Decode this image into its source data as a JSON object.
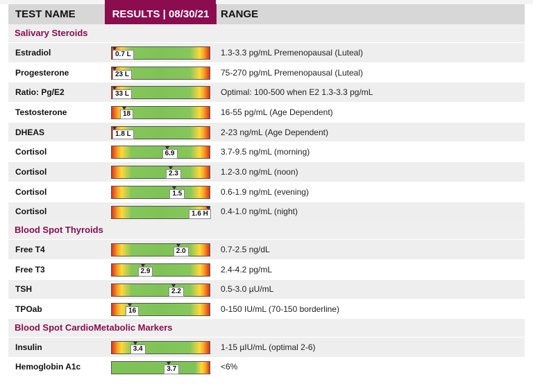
{
  "header": {
    "test_name": "TEST NAME",
    "results": "RESULTS | 08/30/21",
    "range": "RANGE"
  },
  "sections": [
    {
      "title": "Salivary Steroids",
      "rows": [
        {
          "name": "Estradiol",
          "value": "0.7 L",
          "position": 0.0,
          "range": "1.3-3.3 pg/mL Premenopausal (Luteal)"
        },
        {
          "name": "Progesterone",
          "value": "23 L",
          "position": 0.0,
          "range": "75-270 pg/mL Premenopausal (Luteal)"
        },
        {
          "name": "Ratio: Pg/E2",
          "value": "33 L",
          "position": 0.0,
          "range": "Optimal: 100-500 when E2 1.3-3.3 pg/mL"
        },
        {
          "name": "Testosterone",
          "value": "18",
          "position": 0.1,
          "range": "16-55 pg/mL (Age Dependent)"
        },
        {
          "name": "DHEAS",
          "value": "1.8 L",
          "position": 0.0,
          "range": "2-23 ng/mL (Age Dependent)"
        },
        {
          "name": "Cortisol",
          "value": "6.9",
          "position": 0.56,
          "range": "3.7-9.5 ng/mL (morning)"
        },
        {
          "name": "Cortisol",
          "value": "2.3",
          "position": 0.6,
          "range": "1.2-3.0 ng/mL (noon)"
        },
        {
          "name": "Cortisol",
          "value": "1.5",
          "position": 0.64,
          "range": "0.6-1.9 ng/mL (evening)"
        },
        {
          "name": "Cortisol",
          "value": "1.6 H",
          "position": 1.0,
          "range": "0.4-1.0 ng/mL (night)"
        }
      ]
    },
    {
      "title": "Blood Spot Thyroids",
      "rows": [
        {
          "name": "Free T4",
          "value": "2.0",
          "position": 0.68,
          "range": "0.7-2.5 ng/dL"
        },
        {
          "name": "Free T3",
          "value": "2.9",
          "position": 0.3,
          "range": "2.4-4.2 pg/mL"
        },
        {
          "name": "TSH",
          "value": "2.2",
          "position": 0.63,
          "range": "0.5-3.0 µU/mL"
        },
        {
          "name": "TPOab",
          "value": "16",
          "position": 0.16,
          "range": "0-150 IU/mL (70-150 borderline)"
        }
      ]
    },
    {
      "title": "Blood Spot CardioMetabolic Markers",
      "rows": [
        {
          "name": "Insulin",
          "value": "3.4",
          "position": 0.22,
          "range": "1-15 µIU/mL (optimal 2-6)"
        },
        {
          "name": "Hemoglobin A1c",
          "value": "3.7",
          "position": 0.58,
          "range": "<6%",
          "plain": true
        }
      ]
    }
  ],
  "colors": {
    "accent": "#8c0d4f",
    "header_bg": "#d7d7d7",
    "section_bg": "#efefef",
    "gauge_red": "#e0321b",
    "gauge_yellow": "#ffd83b",
    "gauge_green": "#7fc256"
  }
}
